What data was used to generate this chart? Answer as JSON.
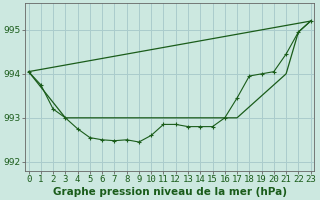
{
  "title": "Graphe pression niveau de la mer (hPa)",
  "bg_color": "#cce8e0",
  "grid_color": "#aacccc",
  "line_color": "#1a5c1a",
  "x_ticks": [
    0,
    1,
    2,
    3,
    4,
    5,
    6,
    7,
    8,
    9,
    10,
    11,
    12,
    13,
    14,
    15,
    16,
    17,
    18,
    19,
    20,
    21,
    22,
    23
  ],
  "ylim": [
    991.8,
    995.6
  ],
  "yticks": [
    992,
    993,
    994,
    995
  ],
  "series1_x": [
    0,
    1,
    2,
    3,
    4,
    5,
    6,
    7,
    8,
    9,
    10,
    11,
    12,
    13,
    14,
    15,
    16,
    17,
    18,
    19,
    20,
    21,
    22,
    23
  ],
  "series1_y": [
    994.05,
    993.75,
    993.2,
    993.0,
    992.75,
    992.55,
    992.5,
    992.48,
    992.5,
    992.45,
    992.6,
    992.85,
    992.85,
    992.8,
    992.8,
    992.8,
    993.0,
    993.45,
    993.95,
    994.0,
    994.05,
    994.45,
    994.95,
    995.2
  ],
  "series2_x": [
    0,
    23
  ],
  "series2_y": [
    994.05,
    995.2
  ],
  "series3_x": [
    0,
    3,
    17,
    21,
    22,
    23
  ],
  "series3_y": [
    994.05,
    993.0,
    993.0,
    994.0,
    994.95,
    995.2
  ],
  "tick_fontsize": 6.5,
  "xlabel_fontsize": 7.5
}
